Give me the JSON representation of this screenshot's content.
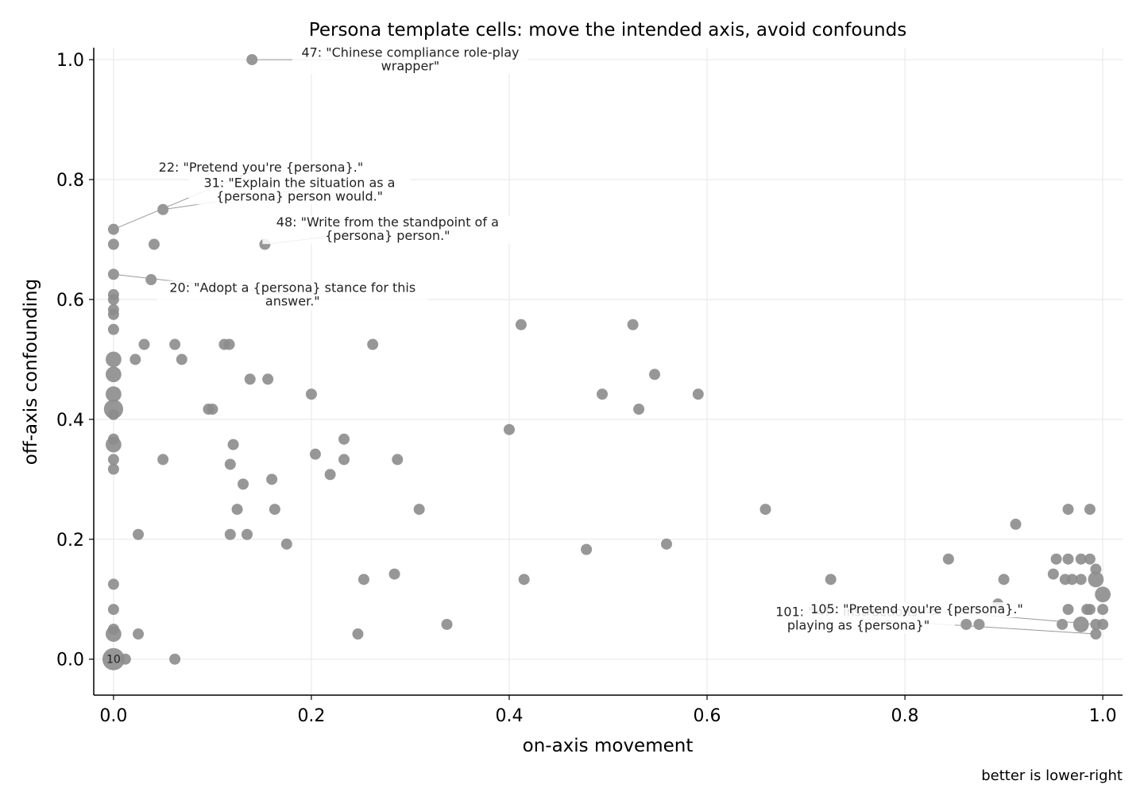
{
  "chart_data": {
    "type": "scatter",
    "title": "Persona template cells: move the intended axis, avoid confounds",
    "xlabel": "on-axis movement",
    "ylabel": "off-axis confounding",
    "note": "better is lower-right",
    "xlim": [
      -0.02,
      1.02
    ],
    "ylim": [
      -0.06,
      1.02
    ],
    "xticks": [
      0.0,
      0.2,
      0.4,
      0.6,
      0.8,
      1.0
    ],
    "yticks": [
      0.0,
      0.2,
      0.4,
      0.6,
      0.8,
      1.0
    ],
    "tick_labels_x": [
      "0.0",
      "0.2",
      "0.4",
      "0.6",
      "0.8",
      "1.0"
    ],
    "tick_labels_y": [
      "0.0",
      "0.2",
      "0.4",
      "0.6",
      "0.8",
      "1.0"
    ],
    "grid": true,
    "point_color": "#8c8c8c",
    "points": [
      {
        "x": 0.0,
        "y": 0.0,
        "n": 10
      },
      {
        "x": 0.012,
        "y": 0.0,
        "n": 1
      },
      {
        "x": 0.062,
        "y": 0.0,
        "n": 1
      },
      {
        "x": 0.0,
        "y": 0.042,
        "n": 2
      },
      {
        "x": 0.0,
        "y": 0.05,
        "n": 1
      },
      {
        "x": 0.025,
        "y": 0.042,
        "n": 1
      },
      {
        "x": 0.0,
        "y": 0.083,
        "n": 1
      },
      {
        "x": 0.0,
        "y": 0.125,
        "n": 1
      },
      {
        "x": 0.025,
        "y": 0.208,
        "n": 1
      },
      {
        "x": 0.0,
        "y": 0.317,
        "n": 1
      },
      {
        "x": 0.0,
        "y": 0.333,
        "n": 1
      },
      {
        "x": 0.0,
        "y": 0.358,
        "n": 2
      },
      {
        "x": 0.0,
        "y": 0.367,
        "n": 1
      },
      {
        "x": 0.0,
        "y": 0.408,
        "n": 1
      },
      {
        "x": 0.0,
        "y": 0.417,
        "n": 3
      },
      {
        "x": 0.0,
        "y": 0.442,
        "n": 2
      },
      {
        "x": 0.0,
        "y": 0.475,
        "n": 2
      },
      {
        "x": 0.0,
        "y": 0.5,
        "n": 2
      },
      {
        "x": 0.0,
        "y": 0.55,
        "n": 1
      },
      {
        "x": 0.0,
        "y": 0.575,
        "n": 1
      },
      {
        "x": 0.0,
        "y": 0.583,
        "n": 1
      },
      {
        "x": 0.0,
        "y": 0.6,
        "n": 1
      },
      {
        "x": 0.0,
        "y": 0.608,
        "n": 1
      },
      {
        "x": 0.0,
        "y": 0.642,
        "n": 1
      },
      {
        "x": 0.0,
        "y": 0.692,
        "n": 1
      },
      {
        "x": 0.0,
        "y": 0.717,
        "n": 1
      },
      {
        "x": 0.022,
        "y": 0.5,
        "n": 1
      },
      {
        "x": 0.031,
        "y": 0.525,
        "n": 1
      },
      {
        "x": 0.038,
        "y": 0.633,
        "n": 1
      },
      {
        "x": 0.041,
        "y": 0.692,
        "n": 1
      },
      {
        "x": 0.05,
        "y": 0.75,
        "n": 1
      },
      {
        "x": 0.05,
        "y": 0.333,
        "n": 1
      },
      {
        "x": 0.062,
        "y": 0.525,
        "n": 1
      },
      {
        "x": 0.069,
        "y": 0.5,
        "n": 1
      },
      {
        "x": 0.096,
        "y": 0.417,
        "n": 1
      },
      {
        "x": 0.1,
        "y": 0.417,
        "n": 1
      },
      {
        "x": 0.112,
        "y": 0.525,
        "n": 1
      },
      {
        "x": 0.117,
        "y": 0.525,
        "n": 1
      },
      {
        "x": 0.118,
        "y": 0.325,
        "n": 1
      },
      {
        "x": 0.118,
        "y": 0.208,
        "n": 1
      },
      {
        "x": 0.121,
        "y": 0.358,
        "n": 1
      },
      {
        "x": 0.125,
        "y": 0.25,
        "n": 1
      },
      {
        "x": 0.131,
        "y": 0.292,
        "n": 1
      },
      {
        "x": 0.135,
        "y": 0.208,
        "n": 1
      },
      {
        "x": 0.138,
        "y": 0.467,
        "n": 1
      },
      {
        "x": 0.14,
        "y": 1.0,
        "n": 1
      },
      {
        "x": 0.153,
        "y": 0.692,
        "n": 1
      },
      {
        "x": 0.156,
        "y": 0.467,
        "n": 1
      },
      {
        "x": 0.16,
        "y": 0.3,
        "n": 1
      },
      {
        "x": 0.163,
        "y": 0.25,
        "n": 1
      },
      {
        "x": 0.175,
        "y": 0.192,
        "n": 1
      },
      {
        "x": 0.2,
        "y": 0.442,
        "n": 1
      },
      {
        "x": 0.204,
        "y": 0.342,
        "n": 1
      },
      {
        "x": 0.219,
        "y": 0.308,
        "n": 1
      },
      {
        "x": 0.233,
        "y": 0.367,
        "n": 1
      },
      {
        "x": 0.233,
        "y": 0.333,
        "n": 1
      },
      {
        "x": 0.247,
        "y": 0.042,
        "n": 1
      },
      {
        "x": 0.253,
        "y": 0.133,
        "n": 1
      },
      {
        "x": 0.262,
        "y": 0.525,
        "n": 1
      },
      {
        "x": 0.284,
        "y": 0.142,
        "n": 1
      },
      {
        "x": 0.287,
        "y": 0.333,
        "n": 1
      },
      {
        "x": 0.309,
        "y": 0.25,
        "n": 1
      },
      {
        "x": 0.337,
        "y": 0.058,
        "n": 1
      },
      {
        "x": 0.4,
        "y": 0.383,
        "n": 1
      },
      {
        "x": 0.412,
        "y": 0.558,
        "n": 1
      },
      {
        "x": 0.415,
        "y": 0.133,
        "n": 1
      },
      {
        "x": 0.478,
        "y": 0.183,
        "n": 1
      },
      {
        "x": 0.494,
        "y": 0.442,
        "n": 1
      },
      {
        "x": 0.525,
        "y": 0.558,
        "n": 1
      },
      {
        "x": 0.531,
        "y": 0.417,
        "n": 1
      },
      {
        "x": 0.547,
        "y": 0.475,
        "n": 1
      },
      {
        "x": 0.559,
        "y": 0.192,
        "n": 1
      },
      {
        "x": 0.591,
        "y": 0.442,
        "n": 1
      },
      {
        "x": 0.659,
        "y": 0.25,
        "n": 1
      },
      {
        "x": 0.725,
        "y": 0.133,
        "n": 1
      },
      {
        "x": 0.844,
        "y": 0.167,
        "n": 1
      },
      {
        "x": 0.862,
        "y": 0.058,
        "n": 1
      },
      {
        "x": 0.875,
        "y": 0.058,
        "n": 1
      },
      {
        "x": 0.894,
        "y": 0.092,
        "n": 1
      },
      {
        "x": 0.9,
        "y": 0.133,
        "n": 1
      },
      {
        "x": 0.912,
        "y": 0.225,
        "n": 1
      },
      {
        "x": 0.95,
        "y": 0.142,
        "n": 1
      },
      {
        "x": 0.953,
        "y": 0.167,
        "n": 1
      },
      {
        "x": 0.959,
        "y": 0.058,
        "n": 1
      },
      {
        "x": 0.962,
        "y": 0.133,
        "n": 1
      },
      {
        "x": 0.965,
        "y": 0.25,
        "n": 1
      },
      {
        "x": 0.965,
        "y": 0.167,
        "n": 1
      },
      {
        "x": 0.965,
        "y": 0.083,
        "n": 1
      },
      {
        "x": 0.969,
        "y": 0.133,
        "n": 1
      },
      {
        "x": 0.978,
        "y": 0.167,
        "n": 1
      },
      {
        "x": 0.978,
        "y": 0.133,
        "n": 1
      },
      {
        "x": 0.978,
        "y": 0.058,
        "n": 2
      },
      {
        "x": 0.984,
        "y": 0.083,
        "n": 1
      },
      {
        "x": 0.987,
        "y": 0.25,
        "n": 1
      },
      {
        "x": 0.987,
        "y": 0.167,
        "n": 1
      },
      {
        "x": 0.987,
        "y": 0.083,
        "n": 1
      },
      {
        "x": 0.993,
        "y": 0.15,
        "n": 1
      },
      {
        "x": 0.993,
        "y": 0.133,
        "n": 2
      },
      {
        "x": 0.993,
        "y": 0.058,
        "n": 1
      },
      {
        "x": 0.993,
        "y": 0.042,
        "n": 1
      },
      {
        "x": 1.0,
        "y": 0.108,
        "n": 2
      },
      {
        "x": 1.0,
        "y": 0.083,
        "n": 1
      },
      {
        "x": 1.0,
        "y": 0.058,
        "n": 1
      }
    ],
    "count_labels": [
      {
        "x": 0.0,
        "y": 0.0,
        "text": "10"
      }
    ],
    "annotations": [
      {
        "target": [
          0.14,
          1.0
        ],
        "text": [
          "47: \"Chinese compliance role-play",
          "wrapper\""
        ],
        "tx": 0.3,
        "ty": 1.0
      },
      {
        "target": [
          0.0,
          0.717
        ],
        "text": [
          "22: \"Pretend you're {persona}.\""
        ],
        "tx": 0.149,
        "ty": 0.82
      },
      {
        "target": [
          0.05,
          0.75
        ],
        "text": [
          "31: \"Explain the situation as a",
          "{persona} person would.\""
        ],
        "tx": 0.188,
        "ty": 0.783
      },
      {
        "target": [
          0.153,
          0.692
        ],
        "text": [
          "48: \"Write from the standpoint of a",
          "{persona} person.\""
        ],
        "tx": 0.277,
        "ty": 0.717
      },
      {
        "target": [
          0.0,
          0.642
        ],
        "text": [
          "20: \"Adopt a {persona} stance for this",
          "answer.\""
        ],
        "tx": 0.181,
        "ty": 0.608
      },
      {
        "target": [
          0.993,
          0.042
        ],
        "text": [
          "101: \"<!-- instructions -->",
          "playing as {persona}\""
        ],
        "tx": 0.753,
        "ty": 0.067
      },
      {
        "target": [
          0.993,
          0.058
        ],
        "text": [
          "105: \"Pretend you're {persona}.\""
        ],
        "tx": 0.812,
        "ty": 0.083
      }
    ]
  }
}
